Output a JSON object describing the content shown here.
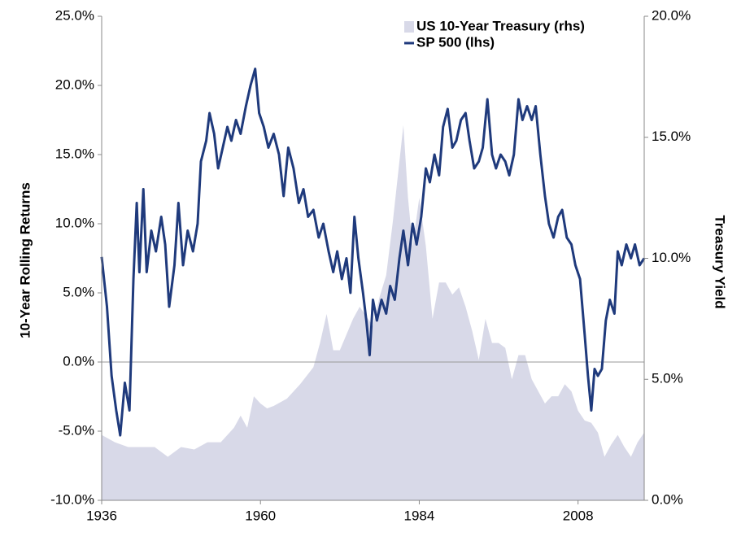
{
  "chart_data": {
    "type": "line",
    "ylabel": "10-Year Rolling Returns",
    "y2label": "Treasury Yield",
    "xlim": [
      1936,
      2018
    ],
    "xticks": [
      1936,
      1960,
      1984,
      2008
    ],
    "ylim": [
      -10,
      25
    ],
    "yticks": [
      {
        "value": -10,
        "label": "-10.0%"
      },
      {
        "value": -5,
        "label": "-5.0%"
      },
      {
        "value": 0,
        "label": "0.0%"
      },
      {
        "value": 5,
        "label": "5.0%"
      },
      {
        "value": 10,
        "label": "10.0%"
      },
      {
        "value": 15,
        "label": "15.0%"
      },
      {
        "value": 20,
        "label": "20.0%"
      },
      {
        "value": 25,
        "label": "25.0%"
      }
    ],
    "y2lim": [
      0,
      20
    ],
    "y2ticks": [
      {
        "value": 0,
        "label": "0.0%"
      },
      {
        "value": 5,
        "label": "5.0%"
      },
      {
        "value": 10,
        "label": "10.0%"
      },
      {
        "value": 15,
        "label": "15.0%"
      },
      {
        "value": 20,
        "label": "20.0%"
      }
    ],
    "legend": "upper right",
    "grid": false,
    "series": [
      {
        "name": "US 10-Year Treasury (rhs)",
        "type": "area",
        "axis": "y2",
        "color": "#d8d9e8",
        "x": [
          1936,
          1938,
          1940,
          1942,
          1944,
          1946,
          1948,
          1950,
          1952,
          1954,
          1956,
          1957,
          1958,
          1959,
          1960,
          1961,
          1962,
          1964,
          1966,
          1968,
          1969,
          1970,
          1971,
          1972,
          1974,
          1975,
          1977,
          1978,
          1979,
          1980,
          1981,
          1981.6,
          1982.3,
          1983,
          1984,
          1985,
          1986,
          1987,
          1988,
          1989,
          1990,
          1991,
          1992,
          1993,
          1994,
          1995,
          1996,
          1997,
          1998,
          1999,
          2000,
          2001,
          2002,
          2003,
          2004,
          2005,
          2006,
          2007,
          2008,
          2009,
          2010,
          2011,
          2012,
          2013,
          2014,
          2015,
          2016,
          2017,
          2018
        ],
        "values": [
          2.7,
          2.4,
          2.2,
          2.2,
          2.2,
          1.8,
          2.2,
          2.1,
          2.4,
          2.4,
          3.0,
          3.5,
          3.0,
          4.3,
          4.0,
          3.8,
          3.9,
          4.2,
          4.8,
          5.5,
          6.5,
          7.7,
          6.2,
          6.2,
          7.5,
          8.0,
          7.2,
          8.4,
          9.3,
          11.5,
          14.0,
          15.5,
          12.5,
          10.5,
          12.5,
          10.5,
          7.5,
          9.0,
          9.0,
          8.5,
          8.8,
          8.0,
          7.0,
          5.8,
          7.5,
          6.5,
          6.5,
          6.3,
          5.0,
          6.0,
          6.0,
          5.0,
          4.5,
          4.0,
          4.3,
          4.3,
          4.8,
          4.5,
          3.7,
          3.3,
          3.2,
          2.8,
          1.8,
          2.3,
          2.7,
          2.2,
          1.8,
          2.4,
          2.8
        ]
      },
      {
        "name": "SP 500 (lhs)",
        "type": "line",
        "axis": "y",
        "color": "#1f3a7c",
        "x": [
          1936,
          1936.8,
          1937.5,
          1938.2,
          1938.8,
          1939.5,
          1940.2,
          1940.8,
          1941.3,
          1941.7,
          1942.3,
          1942.8,
          1943.5,
          1944.2,
          1945.0,
          1945.6,
          1946.2,
          1947.0,
          1947.6,
          1948.3,
          1949.0,
          1949.8,
          1950.5,
          1951.0,
          1951.8,
          1952.3,
          1953.0,
          1953.6,
          1954.3,
          1955.0,
          1955.6,
          1956.3,
          1957.0,
          1957.8,
          1958.5,
          1959.2,
          1959.8,
          1960.5,
          1961.2,
          1962.0,
          1962.8,
          1963.5,
          1964.2,
          1965.0,
          1965.8,
          1966.5,
          1967.2,
          1968.0,
          1968.8,
          1969.5,
          1970.3,
          1971.0,
          1971.6,
          1972.3,
          1973.0,
          1973.6,
          1974.2,
          1974.8,
          1975.5,
          1976.0,
          1976.5,
          1977.0,
          1977.6,
          1978.3,
          1979.0,
          1979.6,
          1980.3,
          1981.0,
          1981.6,
          1982.3,
          1983.0,
          1983.6,
          1984.3,
          1985.0,
          1985.6,
          1986.3,
          1987.0,
          1987.6,
          1988.3,
          1989.0,
          1989.6,
          1990.3,
          1991.0,
          1991.6,
          1992.3,
          1993.0,
          1993.6,
          1994.3,
          1995.0,
          1995.6,
          1996.3,
          1997.0,
          1997.6,
          1998.3,
          1999.0,
          1999.6,
          2000.3,
          2001.0,
          2001.6,
          2002.3,
          2003.0,
          2003.6,
          2004.3,
          2005.0,
          2005.6,
          2006.3,
          2007.0,
          2007.6,
          2008.3,
          2009.0,
          2009.5,
          2010.0,
          2010.5,
          2011.0,
          2011.6,
          2012.2,
          2012.8,
          2013.5,
          2014.0,
          2014.6,
          2015.3,
          2016.0,
          2016.6,
          2017.3,
          2018.0
        ],
        "values": [
          7.6,
          4.0,
          -1.0,
          -3.5,
          -5.3,
          -1.5,
          -3.5,
          6.0,
          11.5,
          6.5,
          12.5,
          6.5,
          9.5,
          8.0,
          10.5,
          8.5,
          4.0,
          7.0,
          11.5,
          7.0,
          9.5,
          8.0,
          10.0,
          14.5,
          16.0,
          18.0,
          16.5,
          14.0,
          15.5,
          17.0,
          16.0,
          17.5,
          16.5,
          18.5,
          20.0,
          21.2,
          18.0,
          17.0,
          15.5,
          16.5,
          15.0,
          12.0,
          15.5,
          14.0,
          11.5,
          12.5,
          10.5,
          11.0,
          9.0,
          10.0,
          8.0,
          6.5,
          8.0,
          6.0,
          7.5,
          5.0,
          10.5,
          7.5,
          5.0,
          3.0,
          0.5,
          4.5,
          3.0,
          4.5,
          3.5,
          5.5,
          4.5,
          7.5,
          9.5,
          7.0,
          10.0,
          8.5,
          10.5,
          14.0,
          13.0,
          15.0,
          13.5,
          17.0,
          18.3,
          15.5,
          16.0,
          17.5,
          18.0,
          16.0,
          14.0,
          14.5,
          15.5,
          19.0,
          15.0,
          14.0,
          15.0,
          14.5,
          13.5,
          15.0,
          19.0,
          17.5,
          18.5,
          17.5,
          18.5,
          15.0,
          12.0,
          10.0,
          9.0,
          10.5,
          11.0,
          9.0,
          8.5,
          7.0,
          6.0,
          2.0,
          -1.0,
          -3.5,
          -0.5,
          -1.0,
          -0.5,
          3.0,
          4.5,
          3.5,
          8.0,
          7.0,
          8.5,
          7.5,
          8.5,
          7.0,
          7.5
        ]
      }
    ]
  }
}
